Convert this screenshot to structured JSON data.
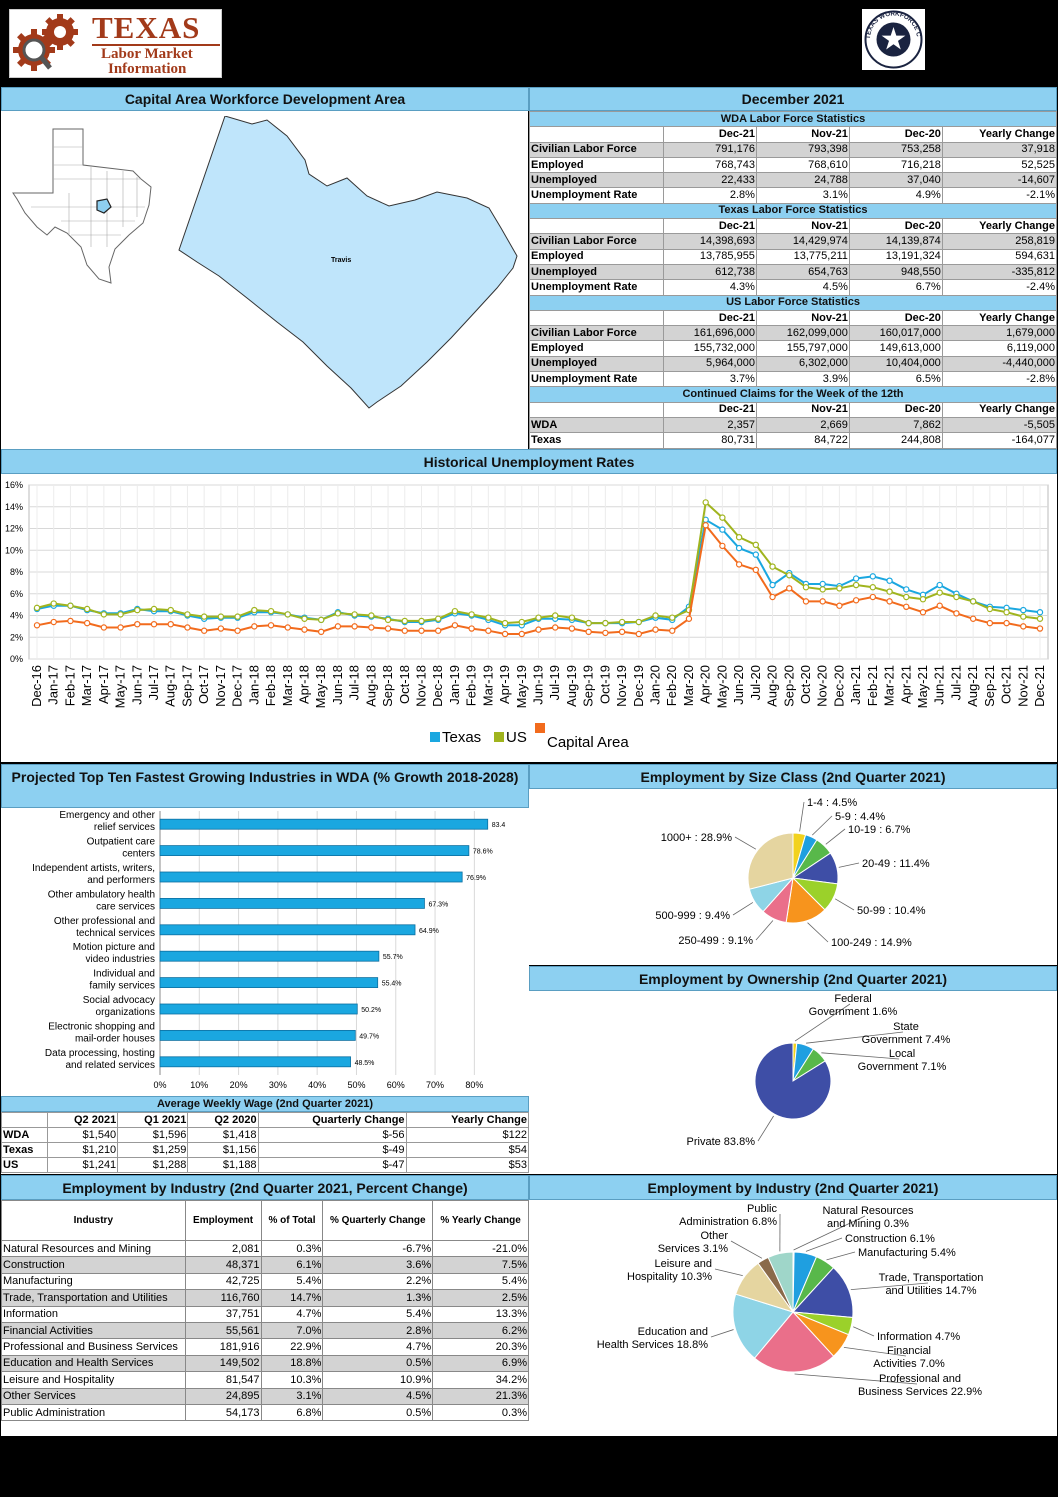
{
  "logo": {
    "line1": "TEXAS",
    "line2": "Labor Market",
    "line3": "Information"
  },
  "seal": {
    "text": "TEXAS WORKFORCE COMMISSION"
  },
  "region_title": "Capital Area Workforce Development Area",
  "period_title": "December 2021",
  "map": {
    "county_label": "Travis"
  },
  "labor_tables": [
    {
      "title": "WDA Labor Force Statistics",
      "cols": [
        "Dec-21",
        "Nov-21",
        "Dec-20",
        "Yearly Change"
      ],
      "rows": [
        [
          "Civilian Labor Force",
          "791,176",
          "793,398",
          "753,258",
          "37,918"
        ],
        [
          "Employed",
          "768,743",
          "768,610",
          "716,218",
          "52,525"
        ],
        [
          "Unemployed",
          "22,433",
          "24,788",
          "37,040",
          "-14,607"
        ],
        [
          "Unemployment Rate",
          "2.8%",
          "3.1%",
          "4.9%",
          "-2.1%"
        ]
      ]
    },
    {
      "title": "Texas Labor Force Statistics",
      "cols": [
        "Dec-21",
        "Nov-21",
        "Dec-20",
        "Yearly Change"
      ],
      "rows": [
        [
          "Civilian Labor Force",
          "14,398,693",
          "14,429,974",
          "14,139,874",
          "258,819"
        ],
        [
          "Employed",
          "13,785,955",
          "13,775,211",
          "13,191,324",
          "594,631"
        ],
        [
          "Unemployed",
          "612,738",
          "654,763",
          "948,550",
          "-335,812"
        ],
        [
          "Unemployment Rate",
          "4.3%",
          "4.5%",
          "6.7%",
          "-2.4%"
        ]
      ]
    },
    {
      "title": "US Labor Force Statistics",
      "cols": [
        "Dec-21",
        "Nov-21",
        "Dec-20",
        "Yearly Change"
      ],
      "rows": [
        [
          "Civilian Labor Force",
          "161,696,000",
          "162,099,000",
          "160,017,000",
          "1,679,000"
        ],
        [
          "Employed",
          "155,732,000",
          "155,797,000",
          "149,613,000",
          "6,119,000"
        ],
        [
          "Unemployed",
          "5,964,000",
          "6,302,000",
          "10,404,000",
          "-4,440,000"
        ],
        [
          "Unemployment Rate",
          "3.7%",
          "3.9%",
          "6.5%",
          "-2.8%"
        ]
      ]
    },
    {
      "title": "Continued Claims for the Week of the 12th",
      "cols": [
        "Dec-21",
        "Nov-21",
        "Dec-20",
        "Yearly Change"
      ],
      "rows": [
        [
          "WDA",
          "2,357",
          "2,669",
          "7,862",
          "-5,505"
        ],
        [
          "Texas",
          "80,731",
          "84,722",
          "244,808",
          "-164,077"
        ]
      ]
    }
  ],
  "historical_title": "Historical Unemployment Rates",
  "chart_data": [
    {
      "type": "line",
      "title": "Historical Unemployment Rates",
      "x": [
        "Dec-16",
        "Jan-17",
        "Feb-17",
        "Mar-17",
        "Apr-17",
        "May-17",
        "Jun-17",
        "Jul-17",
        "Aug-17",
        "Sep-17",
        "Oct-17",
        "Nov-17",
        "Dec-17",
        "Jan-18",
        "Feb-18",
        "Mar-18",
        "Apr-18",
        "May-18",
        "Jun-18",
        "Jul-18",
        "Aug-18",
        "Sep-18",
        "Oct-18",
        "Nov-18",
        "Dec-18",
        "Jan-19",
        "Feb-19",
        "Mar-19",
        "Apr-19",
        "May-19",
        "Jun-19",
        "Jul-19",
        "Aug-19",
        "Sep-19",
        "Oct-19",
        "Nov-19",
        "Dec-19",
        "Jan-20",
        "Feb-20",
        "Mar-20",
        "Apr-20",
        "May-20",
        "Jun-20",
        "Jul-20",
        "Aug-20",
        "Sep-20",
        "Oct-20",
        "Nov-20",
        "Dec-20",
        "Jan-21",
        "Feb-21",
        "Mar-21",
        "Apr-21",
        "May-21",
        "Jun-21",
        "Jul-21",
        "Aug-21",
        "Sep-21",
        "Oct-21",
        "Nov-21",
        "Dec-21"
      ],
      "yticks": [
        "0%",
        "2%",
        "4%",
        "6%",
        "8%",
        "10%",
        "12%",
        "14%",
        "16%"
      ],
      "ylim": [
        0,
        16
      ],
      "legend": [
        "Texas",
        "US",
        "Capital Area"
      ],
      "colors": [
        "#1aa7e0",
        "#a0b41e",
        "#f26b1d"
      ],
      "series": [
        {
          "name": "Texas",
          "values": [
            4.6,
            4.9,
            4.9,
            4.5,
            4.2,
            4.2,
            4.6,
            4.4,
            4.4,
            4.0,
            3.7,
            3.8,
            3.8,
            4.3,
            4.3,
            4.1,
            3.8,
            3.6,
            4.3,
            4.0,
            3.9,
            3.7,
            3.4,
            3.4,
            3.6,
            4.2,
            4.0,
            3.6,
            3.1,
            3.1,
            3.7,
            3.7,
            3.6,
            3.3,
            3.3,
            3.3,
            3.4,
            3.8,
            3.6,
            4.8,
            12.8,
            11.9,
            10.2,
            9.6,
            6.8,
            7.9,
            6.9,
            6.9,
            6.7,
            7.4,
            7.6,
            7.2,
            6.4,
            5.9,
            6.8,
            6.0,
            5.3,
            4.8,
            4.7,
            4.5,
            4.3
          ]
        },
        {
          "name": "US",
          "values": [
            4.7,
            5.1,
            4.9,
            4.6,
            4.1,
            4.1,
            4.5,
            4.6,
            4.5,
            4.1,
            3.9,
            3.9,
            3.9,
            4.5,
            4.4,
            4.1,
            3.7,
            3.6,
            4.2,
            4.1,
            4.0,
            3.6,
            3.5,
            3.5,
            3.7,
            4.4,
            4.1,
            3.8,
            3.3,
            3.4,
            3.8,
            4.0,
            3.8,
            3.3,
            3.3,
            3.4,
            3.4,
            4.0,
            3.8,
            4.5,
            14.4,
            13.0,
            11.2,
            10.5,
            8.5,
            7.7,
            6.6,
            6.4,
            6.5,
            6.8,
            6.6,
            6.2,
            5.7,
            5.5,
            6.1,
            5.7,
            5.3,
            4.6,
            4.3,
            3.9,
            3.7
          ]
        },
        {
          "name": "Capital Area",
          "values": [
            3.1,
            3.4,
            3.5,
            3.3,
            2.9,
            2.9,
            3.2,
            3.2,
            3.2,
            2.9,
            2.6,
            2.8,
            2.6,
            3.0,
            3.1,
            2.9,
            2.7,
            2.5,
            3.0,
            3.0,
            2.9,
            2.8,
            2.6,
            2.6,
            2.6,
            3.1,
            2.8,
            2.6,
            2.3,
            2.3,
            2.7,
            2.9,
            2.8,
            2.5,
            2.4,
            2.5,
            2.3,
            2.7,
            2.6,
            3.7,
            12.3,
            10.4,
            8.7,
            8.2,
            5.7,
            6.5,
            5.3,
            5.3,
            4.9,
            5.4,
            5.7,
            5.3,
            4.8,
            4.3,
            4.9,
            4.2,
            3.7,
            3.3,
            3.3,
            3.0,
            2.8
          ]
        }
      ]
    },
    {
      "type": "bar",
      "title": "Projected Top Ten Fastest Growing Industries in WDA (% Growth 2018-2028)",
      "categories": [
        "Emergency and other relief services",
        "Outpatient care centers",
        "Independent artists, writers, and performers",
        "Other ambulatory health care services",
        "Other professional and technical services",
        "Motion picture and video industries",
        "Individual and family services",
        "Social advocacy organizations",
        "Electronic shopping and mail-order houses",
        "Data processing, hosting and related services"
      ],
      "category_lines": [
        [
          "Emergency and other",
          "relief services"
        ],
        [
          "Outpatient care",
          "centers"
        ],
        [
          "Independent artists, writers,",
          "and performers"
        ],
        [
          "Other ambulatory health",
          "care services"
        ],
        [
          "Other professional and",
          "technical services"
        ],
        [
          "Motion picture and",
          "video industries"
        ],
        [
          "Individual and",
          "family services"
        ],
        [
          "Social advocacy",
          "organizations"
        ],
        [
          "Electronic shopping and",
          "mail-order houses"
        ],
        [
          "Data processing, hosting",
          "and related services"
        ]
      ],
      "values": [
        83.4,
        78.6,
        76.9,
        67.3,
        64.9,
        55.7,
        55.4,
        50.2,
        49.7,
        48.5
      ],
      "labels": [
        "83.4",
        "78.6%",
        "76.9%",
        "67.3%",
        "64.9%",
        "55.7%",
        "55.4%",
        "50.2%",
        "49.7%",
        "48.5%"
      ],
      "xticks": [
        "0%",
        "10%",
        "20%",
        "30%",
        "40%",
        "50%",
        "60%",
        "70%",
        "80%"
      ],
      "xlim": [
        0,
        85
      ]
    },
    {
      "type": "pie",
      "title": "Employment by Size Class (2nd Quarter 2021)",
      "labels": [
        "1-4 : 4.5%",
        "5-9 : 4.4%",
        "10-19 : 6.7%",
        "20-49 : 11.4%",
        "50-99 : 10.4%",
        "100-249 : 14.9%",
        "250-499 : 9.1%",
        "500-999 : 9.4%",
        "1000+ : 28.9%"
      ],
      "values": [
        4.5,
        4.4,
        6.7,
        11.4,
        10.4,
        14.9,
        9.1,
        9.4,
        28.9
      ],
      "colors": [
        "#f2d21e",
        "#1f9fe0",
        "#58b84a",
        "#3e4ea6",
        "#9bd12a",
        "#f7941d",
        "#ea6f8a",
        "#8ed4e6",
        "#e5d5a0"
      ]
    },
    {
      "type": "pie",
      "title": "Employment by Ownership (2nd Quarter 2021)",
      "label_lines": [
        [
          "Federal",
          "Government 1.6%"
        ],
        [
          "State",
          "Government 7.4%"
        ],
        [
          "Local",
          "Government 7.1%"
        ],
        [
          "Private 83.8%"
        ]
      ],
      "values": [
        1.6,
        7.4,
        7.1,
        83.8
      ],
      "colors": [
        "#f2d21e",
        "#1f9fe0",
        "#58b84a",
        "#3e4ea6"
      ]
    },
    {
      "type": "pie",
      "title": "Employment by Industry (2nd Quarter 2021)",
      "label_lines": [
        [
          "Natural Resources",
          "and Mining 0.3%"
        ],
        [
          "Construction 6.1%"
        ],
        [
          "Manufacturing 5.4%"
        ],
        [
          "Trade, Transportation",
          "and Utilities 14.7%"
        ],
        [
          "Information 4.7%"
        ],
        [
          "Financial",
          "Activities 7.0%"
        ],
        [
          "Professional and",
          "Business Services 22.9%"
        ],
        [
          "Education and",
          "Health Services 18.8%"
        ],
        [
          "Leisure and",
          "Hospitality 10.3%"
        ],
        [
          "Other",
          "Services 3.1%"
        ],
        [
          "Public",
          "Administration 6.8%"
        ]
      ],
      "values": [
        0.3,
        6.1,
        5.4,
        14.7,
        4.7,
        7.0,
        22.9,
        18.8,
        10.3,
        3.1,
        6.8
      ],
      "colors": [
        "#f2d21e",
        "#1f9fe0",
        "#58b84a",
        "#3e4ea6",
        "#9bd12a",
        "#f7941d",
        "#ea6f8a",
        "#8ed4e6",
        "#e5d5a0",
        "#8a6a4a",
        "#9fd6c9"
      ]
    }
  ],
  "growth_title": "Projected Top Ten Fastest Growing Industries in WDA (% Growth 2018-2028)",
  "size_title": "Employment by Size Class (2nd Quarter 2021)",
  "owner_title": "Employment by Ownership (2nd Quarter 2021)",
  "ind_pie_title": "Employment by Industry (2nd Quarter 2021)",
  "wage": {
    "title": "Average Weekly Wage (2nd Quarter 2021)",
    "cols": [
      "",
      "Q2 2021",
      "Q1 2021",
      "Q2 2020",
      "Quarterly Change",
      "Yearly Change"
    ],
    "rows": [
      [
        "WDA",
        "$1,540",
        "$1,596",
        "$1,418",
        "$-56",
        "$122"
      ],
      [
        "Texas",
        "$1,210",
        "$1,259",
        "$1,156",
        "$-49",
        "$54"
      ],
      [
        "US",
        "$1,241",
        "$1,288",
        "$1,188",
        "$-47",
        "$53"
      ]
    ]
  },
  "industry_table": {
    "title": "Employment by Industry (2nd Quarter 2021, Percent Change)",
    "cols": [
      "Industry",
      "Employment",
      "% of Total",
      "% Quarterly Change",
      "% Yearly Change"
    ],
    "rows": [
      [
        "Natural Resources and Mining",
        "2,081",
        "0.3%",
        "-6.7%",
        "-21.0%"
      ],
      [
        "Construction",
        "48,371",
        "6.1%",
        "3.6%",
        "7.5%"
      ],
      [
        "Manufacturing",
        "42,725",
        "5.4%",
        "2.2%",
        "5.4%"
      ],
      [
        "Trade, Transportation and Utilities",
        "116,760",
        "14.7%",
        "1.3%",
        "2.5%"
      ],
      [
        "Information",
        "37,751",
        "4.7%",
        "5.4%",
        "13.3%"
      ],
      [
        "Financial Activities",
        "55,561",
        "7.0%",
        "2.8%",
        "6.2%"
      ],
      [
        "Professional and Business Services",
        "181,916",
        "22.9%",
        "4.7%",
        "20.3%"
      ],
      [
        "Education and Health Services",
        "149,502",
        "18.8%",
        "0.5%",
        "6.9%"
      ],
      [
        "Leisure and Hospitality",
        "81,547",
        "10.3%",
        "10.9%",
        "34.2%"
      ],
      [
        "Other Services",
        "24,895",
        "3.1%",
        "4.5%",
        "21.3%"
      ],
      [
        "Public Administration",
        "54,173",
        "6.8%",
        "0.5%",
        "0.3%"
      ]
    ]
  }
}
